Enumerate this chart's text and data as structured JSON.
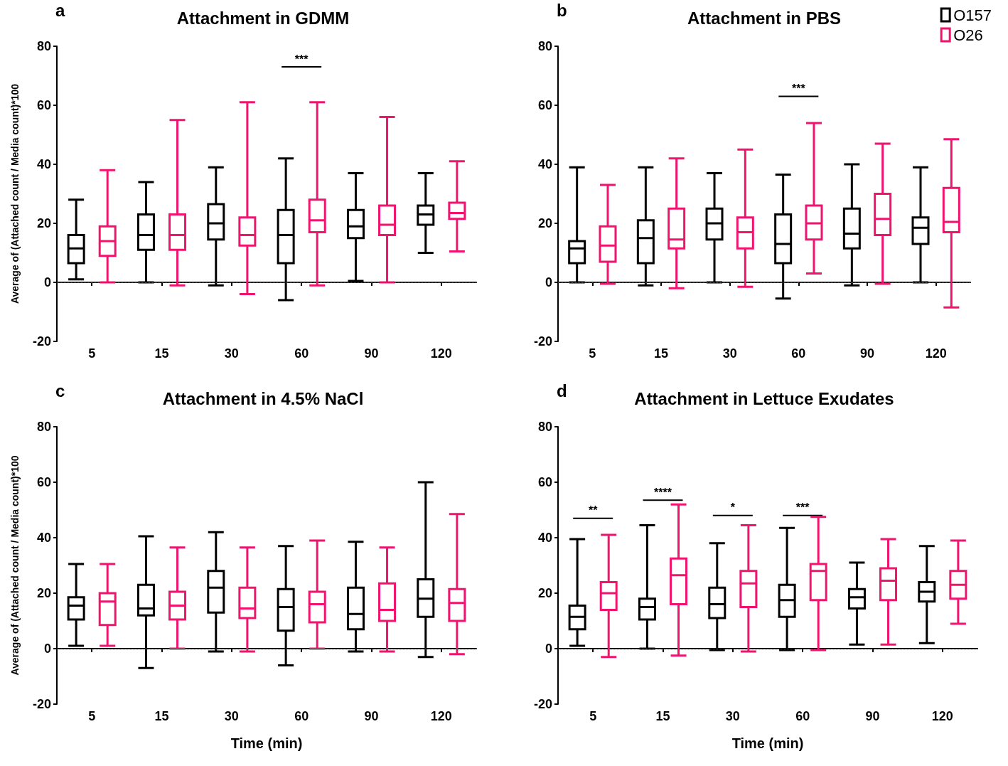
{
  "chart_data": [
    {
      "type": "box",
      "title": "Attachment in GDMM",
      "ylabel": "Average of (Attached count / Media count)*100",
      "categories": [
        "5",
        "15",
        "30",
        "60",
        "90",
        "120"
      ],
      "ylim": [
        -20,
        80
      ],
      "yticks": [
        -20,
        0,
        20,
        40,
        60,
        80
      ],
      "grid": false,
      "legend": false,
      "annotations": [
        "a",
        "***"
      ],
      "ref_lines": [
        {
          "axis": "y",
          "value": 0,
          "color": "#555555",
          "line_style": "dotted"
        }
      ],
      "series": [
        {
          "color": "#000000",
          "boxes": [
            {
              "low": 1,
              "q1": 6.5,
              "median": 11.5,
              "q3": 16,
              "high": 28
            },
            {
              "low": 0,
              "q1": 11,
              "median": 16,
              "q3": 23,
              "high": 34
            },
            {
              "low": -1,
              "q1": 14.5,
              "median": 20,
              "q3": 26.5,
              "high": 39
            },
            {
              "low": -6,
              "q1": 6.5,
              "median": 16,
              "q3": 24.5,
              "high": 42
            },
            {
              "low": 0.5,
              "q1": 15,
              "median": 19,
              "q3": 24.5,
              "high": 37
            },
            {
              "low": 10,
              "q1": 19.5,
              "median": 23,
              "q3": 26,
              "high": 37
            }
          ]
        },
        {
          "color": "#f0146e",
          "boxes": [
            {
              "low": 0,
              "q1": 9,
              "median": 14,
              "q3": 19,
              "high": 38
            },
            {
              "low": -1,
              "q1": 11,
              "median": 16,
              "q3": 23,
              "high": 55
            },
            {
              "low": -4,
              "q1": 12.5,
              "median": 16,
              "q3": 22,
              "high": 61
            },
            {
              "low": -1,
              "q1": 17,
              "median": 21,
              "q3": 28,
              "high": 61
            },
            {
              "low": 0,
              "q1": 16,
              "median": 19.5,
              "q3": 26,
              "high": 56
            },
            {
              "low": 10.5,
              "q1": 21.5,
              "median": 23.5,
              "q3": 27,
              "high": 41
            }
          ]
        }
      ]
    },
    {
      "type": "box",
      "title": "Attachment in PBS",
      "categories": [
        "5",
        "15",
        "30",
        "60",
        "90",
        "120"
      ],
      "ylim": [
        -20,
        80
      ],
      "yticks": [
        -20,
        0,
        20,
        40,
        60,
        80
      ],
      "grid": false,
      "legend": "top right",
      "annotations": [
        "b",
        "***"
      ],
      "ref_lines": [
        {
          "axis": "y",
          "value": 0,
          "color": "#555555",
          "line_style": "dotted"
        }
      ],
      "series": [
        {
          "name": "O157",
          "color": "#000000",
          "boxes": [
            {
              "low": 0,
              "q1": 6.5,
              "median": 11.5,
              "q3": 14,
              "high": 39
            },
            {
              "low": -1,
              "q1": 6.5,
              "median": 15,
              "q3": 21,
              "high": 39
            },
            {
              "low": 0,
              "q1": 14.5,
              "median": 20,
              "q3": 25,
              "high": 37
            },
            {
              "low": -5.5,
              "q1": 6.5,
              "median": 13,
              "q3": 23,
              "high": 36.5
            },
            {
              "low": -1,
              "q1": 11.5,
              "median": 16.5,
              "q3": 25,
              "high": 40
            },
            {
              "low": 0,
              "q1": 13,
              "median": 18.5,
              "q3": 22,
              "high": 39
            }
          ]
        },
        {
          "name": "O26",
          "color": "#f0146e",
          "boxes": [
            {
              "low": -0.5,
              "q1": 7,
              "median": 12.5,
              "q3": 19,
              "high": 33
            },
            {
              "low": -2,
              "q1": 11.5,
              "median": 14.5,
              "q3": 25,
              "high": 42
            },
            {
              "low": -1.5,
              "q1": 11.5,
              "median": 17,
              "q3": 22,
              "high": 45
            },
            {
              "low": 3,
              "q1": 14.5,
              "median": 20,
              "q3": 26,
              "high": 54
            },
            {
              "low": -0.5,
              "q1": 16,
              "median": 21.5,
              "q3": 30,
              "high": 47
            },
            {
              "low": -8.5,
              "q1": 17,
              "median": 20.5,
              "q3": 32,
              "high": 48.5
            }
          ]
        }
      ]
    },
    {
      "type": "box",
      "title": "Attachment in 4.5% NaCl",
      "xlabel": "Time (min)",
      "ylabel": "Average of (Attached count / Media count)*100",
      "categories": [
        "5",
        "15",
        "30",
        "60",
        "90",
        "120"
      ],
      "ylim": [
        -20,
        80
      ],
      "yticks": [
        -20,
        0,
        20,
        40,
        60,
        80
      ],
      "grid": false,
      "legend": false,
      "annotations": [
        "c"
      ],
      "ref_lines": [
        {
          "axis": "y",
          "value": 0,
          "color": "#555555",
          "line_style": "dotted"
        }
      ],
      "series": [
        {
          "color": "#000000",
          "boxes": [
            {
              "low": 1,
              "q1": 10.5,
              "median": 15.5,
              "q3": 18.5,
              "high": 30.5
            },
            {
              "low": -7,
              "q1": 12,
              "median": 14.5,
              "q3": 23,
              "high": 40.5
            },
            {
              "low": -1,
              "q1": 13,
              "median": 22,
              "q3": 28,
              "high": 42
            },
            {
              "low": -6,
              "q1": 6.5,
              "median": 15,
              "q3": 21.5,
              "high": 37
            },
            {
              "low": -1,
              "q1": 7,
              "median": 12.5,
              "q3": 22,
              "high": 38.5
            },
            {
              "low": -3,
              "q1": 11.5,
              "median": 18,
              "q3": 25,
              "high": 60
            }
          ]
        },
        {
          "color": "#f0146e",
          "boxes": [
            {
              "low": 1,
              "q1": 8.5,
              "median": 17,
              "q3": 20,
              "high": 30.5
            },
            {
              "low": 0,
              "q1": 10.5,
              "median": 15.5,
              "q3": 20.5,
              "high": 36.5
            },
            {
              "low": -1,
              "q1": 11,
              "median": 14.5,
              "q3": 22,
              "high": 36.5
            },
            {
              "low": 0,
              "q1": 9.5,
              "median": 16,
              "q3": 20.5,
              "high": 39
            },
            {
              "low": -1,
              "q1": 10,
              "median": 14,
              "q3": 23.5,
              "high": 36.5
            },
            {
              "low": -2,
              "q1": 10,
              "median": 16.5,
              "q3": 21.5,
              "high": 48.5
            }
          ]
        }
      ]
    },
    {
      "type": "box",
      "title": "Attachment in Lettuce Exudates",
      "xlabel": "Time (min)",
      "categories": [
        "5",
        "15",
        "30",
        "60",
        "90",
        "120"
      ],
      "ylim": [
        -20,
        80
      ],
      "yticks": [
        -20,
        0,
        20,
        40,
        60,
        80
      ],
      "grid": false,
      "legend": false,
      "annotations": [
        "d",
        "**",
        "****",
        "*",
        "***"
      ],
      "ref_lines": [
        {
          "axis": "y",
          "value": 0,
          "color": "#555555",
          "line_style": "dotted"
        }
      ],
      "series": [
        {
          "color": "#000000",
          "boxes": [
            {
              "low": 1,
              "q1": 7,
              "median": 11.5,
              "q3": 15.5,
              "high": 39.5
            },
            {
              "low": 0,
              "q1": 10.5,
              "median": 15,
              "q3": 18,
              "high": 44.5
            },
            {
              "low": -0.5,
              "q1": 11,
              "median": 16,
              "q3": 22,
              "high": 38
            },
            {
              "low": -0.5,
              "q1": 11.5,
              "median": 17.5,
              "q3": 23,
              "high": 43.5
            },
            {
              "low": 1.5,
              "q1": 14.5,
              "median": 18.5,
              "q3": 21.5,
              "high": 31
            },
            {
              "low": 2,
              "q1": 17,
              "median": 20.5,
              "q3": 24,
              "high": 37
            }
          ]
        },
        {
          "color": "#f0146e",
          "boxes": [
            {
              "low": -3,
              "q1": 14,
              "median": 20,
              "q3": 24,
              "high": 41
            },
            {
              "low": -2.5,
              "q1": 16,
              "median": 26.5,
              "q3": 32.5,
              "high": 52
            },
            {
              "low": -1,
              "q1": 15,
              "median": 23.5,
              "q3": 28,
              "high": 44.5
            },
            {
              "low": -0.5,
              "q1": 17.5,
              "median": 28,
              "q3": 30.5,
              "high": 47.5
            },
            {
              "low": 1.5,
              "q1": 17.5,
              "median": 24.5,
              "q3": 29,
              "high": 39.5
            },
            {
              "low": 9,
              "q1": 18,
              "median": 23,
              "q3": 28,
              "high": 39
            }
          ]
        }
      ]
    }
  ]
}
